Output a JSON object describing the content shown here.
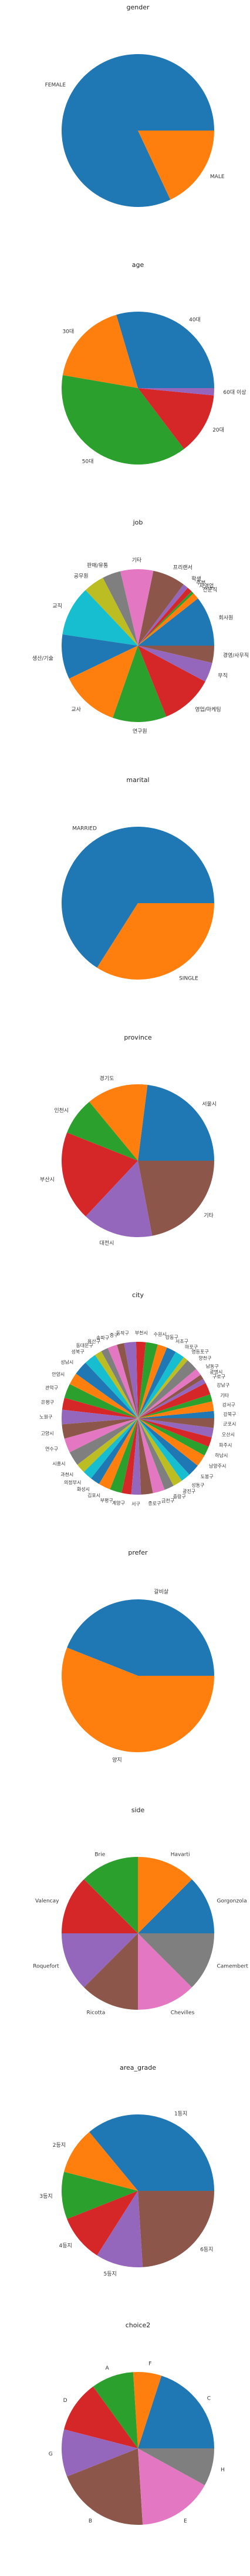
{
  "chart_data": [
    {
      "type": "pie",
      "title": "gender",
      "labels": [
        "FEMALE",
        "MALE"
      ],
      "values": [
        0.82,
        0.18
      ]
    },
    {
      "type": "pie",
      "title": "age",
      "labels": [
        "40대",
        "30대",
        "50대",
        "20대",
        "60대 이상"
      ],
      "values": [
        0.252,
        0.151,
        0.324,
        0.112,
        0.013
      ]
    },
    {
      "type": "pie",
      "title": "job",
      "labels": [
        "회사원",
        "전문직",
        "자영업",
        "주부",
        "학생",
        "프리랜서",
        "기타",
        "판매/유통",
        "공무원",
        "교직",
        "생산/기술",
        "교사",
        "연구원",
        "영업/마케팅",
        "무직",
        "경영/사무직"
      ],
      "values": [
        0.0955,
        0.0126,
        0.0051,
        0.0101,
        0.0101,
        0.0628,
        0.0628,
        0.0352,
        0.0402,
        0.0955,
        0.0854,
        0.1131,
        0.103,
        0.1005,
        0.0376,
        0.0327
      ]
    },
    {
      "type": "pie",
      "title": "marital",
      "labels": [
        "MARRIED",
        "SINGLE"
      ],
      "values": [
        0.66,
        0.34
      ]
    },
    {
      "type": "pie",
      "title": "province",
      "labels": [
        "서울시",
        "경기도",
        "인천시",
        "부산시",
        "대전시",
        "기타"
      ],
      "values": [
        0.23,
        0.13,
        0.08,
        0.19,
        0.15,
        0.22
      ]
    },
    {
      "type": "pie",
      "title": "city",
      "labels": [
        "강북구",
        "강서구",
        "기타",
        "강남구",
        "구로구",
        "광명시",
        "남동구",
        "양천구",
        "영등포구",
        "마포구",
        "서초구",
        "강동구",
        "수원시",
        "부천시",
        "동작구",
        "중구",
        "송파구",
        "용산구",
        "동대문구",
        "성북구",
        "성남시",
        "안양시",
        "관악구",
        "은평구",
        "노원구",
        "고양시",
        "연수구",
        "시흥시",
        "과천시",
        "의정부시",
        "화성시",
        "김포시",
        "부평구",
        "계양구",
        "서구",
        "종로구",
        "금천구",
        "중랑구",
        "광진구",
        "성동구",
        "도봉구",
        "남양주시",
        "하남시",
        "파주시",
        "오산시",
        "군포시"
      ],
      "values": [
        0.015,
        0.02,
        0.015,
        0.025,
        0.01,
        0.01,
        0.015,
        0.025,
        0.01,
        0.02,
        0.02,
        0.02,
        0.025,
        0.02,
        0.025,
        0.015,
        0.02,
        0.015,
        0.015,
        0.025,
        0.03,
        0.025,
        0.03,
        0.025,
        0.03,
        0.03,
        0.03,
        0.03,
        0.02,
        0.02,
        0.02,
        0.025,
        0.025,
        0.02,
        0.02,
        0.025,
        0.025,
        0.02,
        0.02,
        0.02,
        0.025,
        0.025,
        0.02,
        0.02,
        0.02,
        0.02
      ]
    },
    {
      "type": "pie",
      "title": "prefer",
      "labels": [
        "갈비살",
        "양지"
      ],
      "values": [
        0.44,
        0.56
      ]
    },
    {
      "type": "pie",
      "title": "side",
      "labels": [
        "Gorgonzola",
        "Havarti",
        "Brie",
        "Valencay",
        "Roquefort",
        "Ricotta",
        "Chevilles",
        "Camembert"
      ],
      "values": [
        0.125,
        0.125,
        0.125,
        0.125,
        0.125,
        0.125,
        0.125,
        0.125
      ]
    },
    {
      "type": "pie",
      "title": "area_grade",
      "labels": [
        "1등지",
        "2등지",
        "3등지",
        "4등지",
        "5등지",
        "6등지"
      ],
      "values": [
        0.36,
        0.1,
        0.1,
        0.1,
        0.1,
        0.24
      ]
    },
    {
      "type": "pie",
      "title": "choice2",
      "labels": [
        "C",
        "F",
        "A",
        "D",
        "G",
        "B",
        "E",
        "H"
      ],
      "values": [
        0.2,
        0.06,
        0.09,
        0.11,
        0.1,
        0.2,
        0.16,
        0.08
      ]
    }
  ],
  "colors": [
    "#1f77b4",
    "#ff7f0e",
    "#2ca02c",
    "#d62728",
    "#9467bd",
    "#8c564b",
    "#e377c2",
    "#7f7f7f",
    "#bcbd22",
    "#17becf"
  ]
}
